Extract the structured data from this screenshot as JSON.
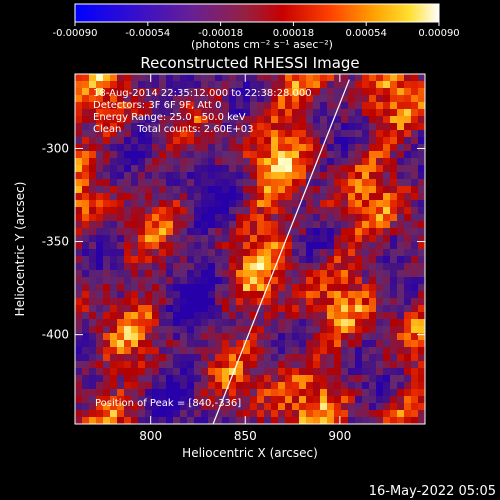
{
  "chart_data": {
    "type": "heatmap",
    "title": "Reconstructed RHESSI Image",
    "xlabel": "Heliocentric X (arcsec)",
    "ylabel": "Heliocentric Y (arcsec)",
    "xlim": [
      760,
      945
    ],
    "ylim": [
      -448,
      -260
    ],
    "xticks": [
      800,
      850,
      900
    ],
    "yticks": [
      -300,
      -350,
      -400
    ],
    "colorbar": {
      "range": [
        -0.0009,
        0.0009
      ],
      "ticks": [
        "-0.00090",
        "-0.00054",
        "-0.00018",
        "0.00018",
        "0.00054",
        "0.00090"
      ],
      "unit_label": "(photons cm⁻² s⁻¹ asec⁻²)"
    },
    "annotations": {
      "time_range": "18-Aug-2014 22:35:12.000 to 22:38:28.000",
      "detectors": "Detectors: 3F 6F 9F, Att 0",
      "energy": "Energy Range: 25.0 - 50.0 keV",
      "clean": "Clean     Total counts: 2.60E+03",
      "peak": "Position of Peak = [840,-336]"
    },
    "limb_line": [
      [
        833,
        -448
      ],
      [
        905,
        -263
      ]
    ],
    "colors": {
      "background": "#000000",
      "axes": "#ffffff"
    }
  },
  "footer": {
    "date": "16-May-2022 05:05"
  }
}
